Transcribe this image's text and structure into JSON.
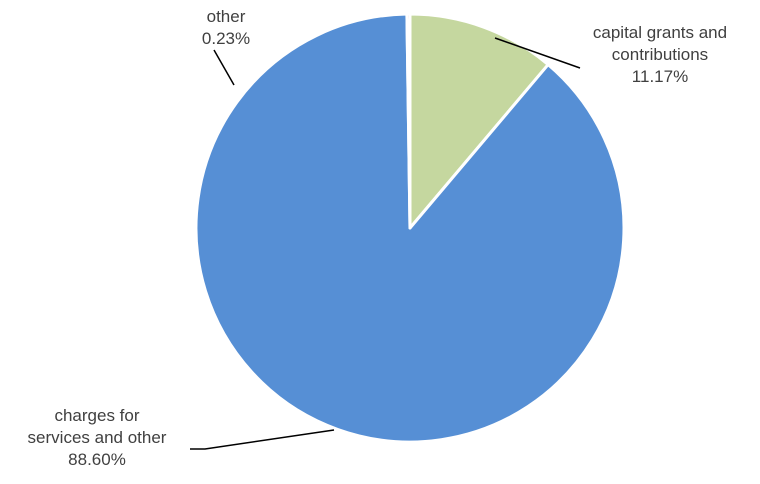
{
  "chart_data": {
    "type": "pie",
    "title": "",
    "start_angle_deg": 0,
    "direction": "clockwise",
    "slices": [
      {
        "label_lines": [
          "capital grants and",
          "contributions"
        ],
        "value_label": "11.17%",
        "value": 11.17,
        "color": "#c5d79f"
      },
      {
        "label_lines": [
          "charges for",
          "services and other"
        ],
        "value_label": "88.60%",
        "value": 88.6,
        "color": "#568fd5"
      },
      {
        "label_lines": [
          "other"
        ],
        "value_label": "0.23%",
        "value": 0.23,
        "color": "#c0504d"
      }
    ]
  }
}
